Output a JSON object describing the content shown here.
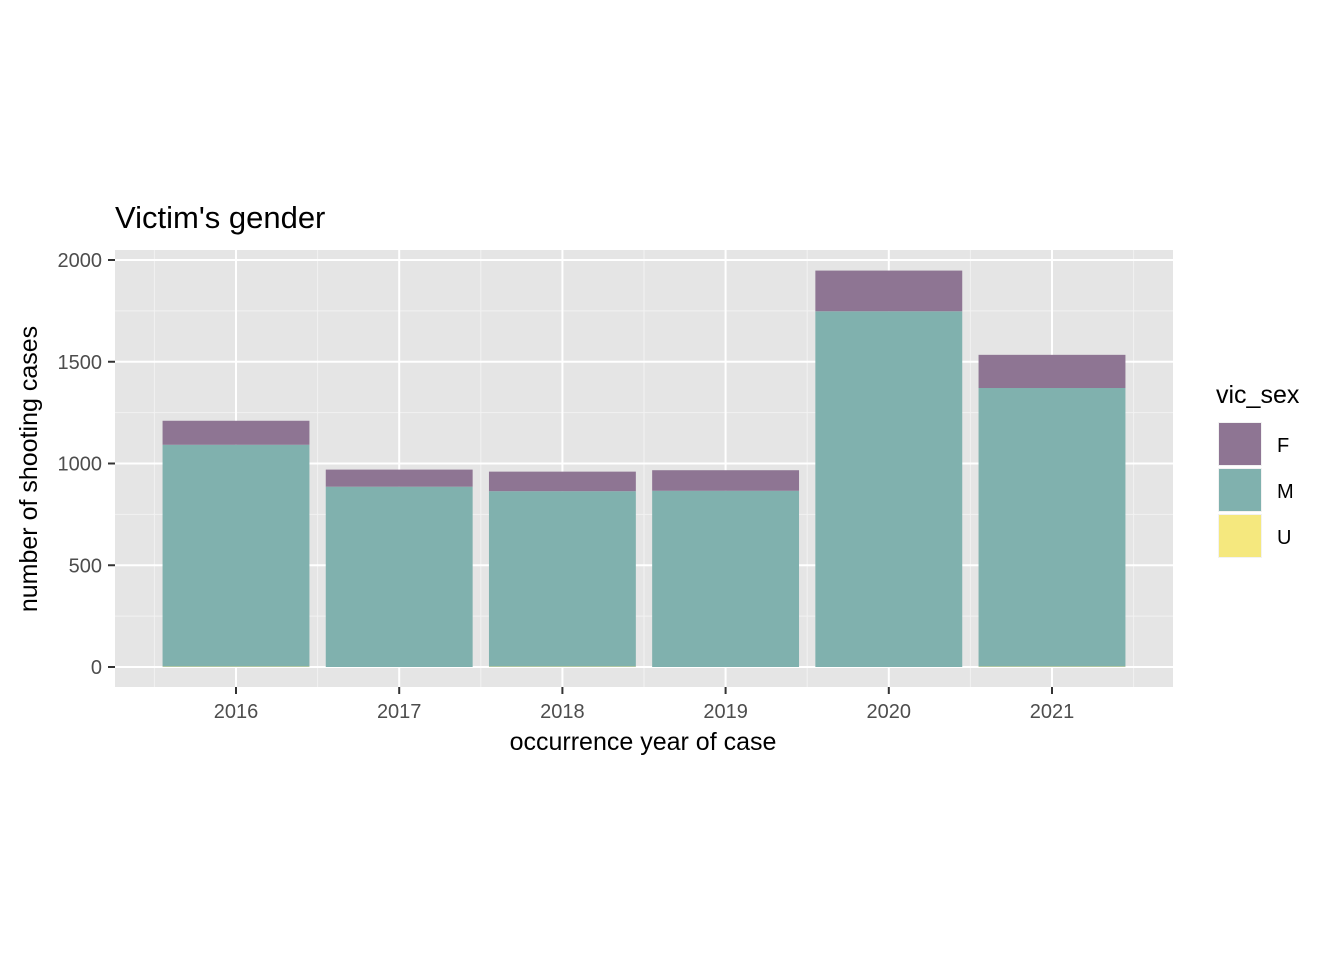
{
  "chart_data": {
    "type": "bar",
    "stacked": true,
    "title": "Victim's gender",
    "xlabel": "occurrence year of case",
    "ylabel": "number of shooting cases",
    "categories": [
      "2016",
      "2017",
      "2018",
      "2019",
      "2020",
      "2021"
    ],
    "series": [
      {
        "name": "U",
        "values": [
          2,
          0,
          2,
          0,
          0,
          2
        ],
        "color": "#f5e87e"
      },
      {
        "name": "M",
        "values": [
          1090,
          886,
          862,
          866,
          1748,
          1369
        ],
        "color": "#80b1ae"
      },
      {
        "name": "F",
        "values": [
          118,
          84,
          96,
          101,
          200,
          163
        ],
        "color": "#8e7593"
      }
    ],
    "ylim": [
      0,
      2000
    ],
    "yticks": [
      0,
      500,
      1000,
      1500,
      2000
    ],
    "grid": true,
    "legend": {
      "title": "vic_sex",
      "position": "right",
      "entries": [
        "F",
        "M",
        "U"
      ]
    },
    "colors": {
      "panel_background": "#e5e5e5",
      "grid_major": "#ffffff",
      "grid_minor": "#f2f2f2"
    }
  }
}
